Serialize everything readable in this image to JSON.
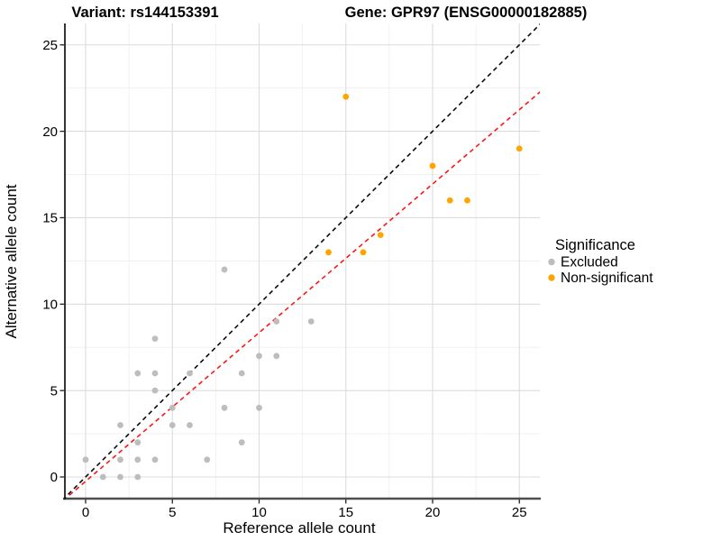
{
  "titles": {
    "left": "Variant: rs144153391",
    "right": "Gene: GPR97 (ENSG00000182885)"
  },
  "chart_data": {
    "type": "scatter",
    "xlabel": "Reference allele count",
    "ylabel": "Alternative allele count",
    "xlim": [
      -1.2,
      26.2
    ],
    "ylim": [
      -1.25,
      26.25
    ],
    "x_ticks": [
      0,
      5,
      10,
      15,
      20,
      25
    ],
    "y_ticks": [
      0,
      5,
      10,
      15,
      20,
      25
    ],
    "x_minor_ticks": [
      2.5,
      7.5,
      12.5,
      17.5,
      22.5
    ],
    "y_minor_ticks": [
      2.5,
      7.5,
      12.5,
      17.5,
      22.5
    ],
    "grid": true,
    "legend": {
      "title": "Significance",
      "position": "right",
      "entries": [
        {
          "label": "Excluded",
          "color": "#BDBDBD"
        },
        {
          "label": "Non-significant",
          "color": "#FFA500"
        }
      ]
    },
    "series": [
      {
        "name": "Excluded",
        "color": "#BDBDBD",
        "points": [
          [
            0,
            1
          ],
          [
            1,
            0
          ],
          [
            2,
            0
          ],
          [
            2,
            1
          ],
          [
            2,
            3
          ],
          [
            3,
            0
          ],
          [
            3,
            1
          ],
          [
            3,
            2
          ],
          [
            3,
            6
          ],
          [
            4,
            1
          ],
          [
            4,
            5
          ],
          [
            4,
            6
          ],
          [
            4,
            8
          ],
          [
            5,
            3
          ],
          [
            5,
            4
          ],
          [
            6,
            3
          ],
          [
            6,
            6
          ],
          [
            7,
            1
          ],
          [
            8,
            4
          ],
          [
            8,
            12
          ],
          [
            9,
            2
          ],
          [
            9,
            6
          ],
          [
            10,
            4
          ],
          [
            10,
            7
          ],
          [
            11,
            7
          ],
          [
            11,
            9
          ],
          [
            13,
            9
          ]
        ]
      },
      {
        "name": "Non-significant",
        "color": "#FFA500",
        "points": [
          [
            14,
            13
          ],
          [
            15,
            22
          ],
          [
            16,
            13
          ],
          [
            17,
            14
          ],
          [
            20,
            18
          ],
          [
            21,
            16
          ],
          [
            22,
            16
          ],
          [
            25,
            19
          ]
        ]
      }
    ],
    "lines": [
      {
        "name": "identity-line",
        "style": "dashed",
        "color": "#0a0a0a",
        "slope": 1,
        "intercept": 0
      },
      {
        "name": "regression-line",
        "style": "dashed",
        "color": "#ff1414",
        "slope": 0.86,
        "intercept": -0.25
      }
    ]
  },
  "colors": {
    "grid_major": "#dcdcdc",
    "grid_minor": "#efefef",
    "axis_line_x": "#4d4d4d",
    "axis_line_y": "#111111",
    "tick_mark": "#222222"
  }
}
